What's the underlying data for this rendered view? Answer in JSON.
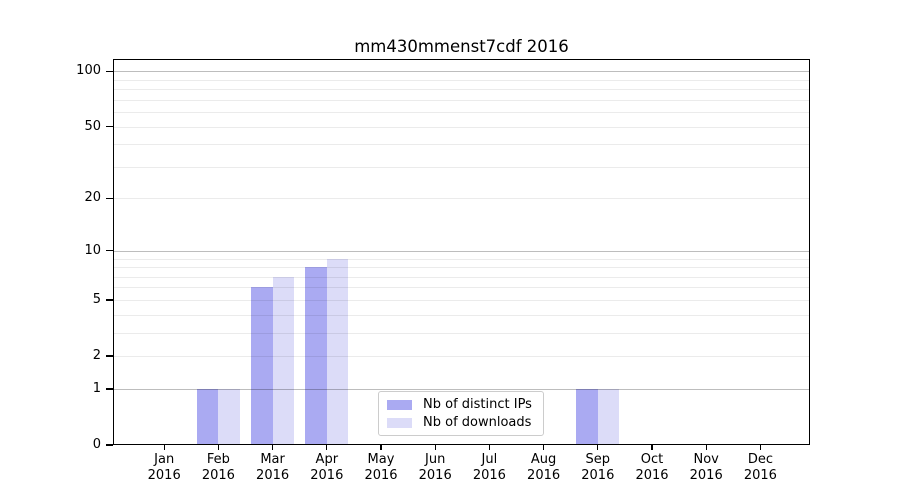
{
  "chart_data": {
    "type": "bar",
    "title": "mm430mmenst7cdf 2016",
    "categories": [
      "Jan",
      "Feb",
      "Mar",
      "Apr",
      "May",
      "Jun",
      "Jul",
      "Aug",
      "Sep",
      "Oct",
      "Nov",
      "Dec"
    ],
    "year": "2016",
    "series": [
      {
        "name": "Nb of distinct IPs",
        "color": "#aaaaf2",
        "values": [
          0,
          1,
          6,
          8,
          0,
          0,
          0,
          0,
          1,
          0,
          0,
          0
        ]
      },
      {
        "name": "Nb of downloads",
        "color": "#dcdcf8",
        "values": [
          0,
          1,
          7,
          9,
          0,
          0,
          0,
          0,
          1,
          0,
          0,
          0
        ]
      }
    ],
    "yscale": "log1p",
    "ylim": [
      0,
      116
    ],
    "yticks": [
      0,
      1,
      2,
      5,
      10,
      20,
      50,
      100
    ],
    "grid_major": [
      1,
      10,
      100
    ],
    "grid_minor": [
      2,
      3,
      4,
      5,
      6,
      7,
      8,
      9,
      20,
      30,
      40,
      50,
      60,
      70,
      80,
      90
    ],
    "legend_position": "lower center",
    "colors": {
      "bar_distinct_ips": "#aaaaf2",
      "bar_downloads": "#dcdcf8",
      "major_grid": "#bdbdbd",
      "minor_grid": "#ebebeb",
      "spine": "#000000",
      "legend_border": "#cccccc"
    }
  }
}
